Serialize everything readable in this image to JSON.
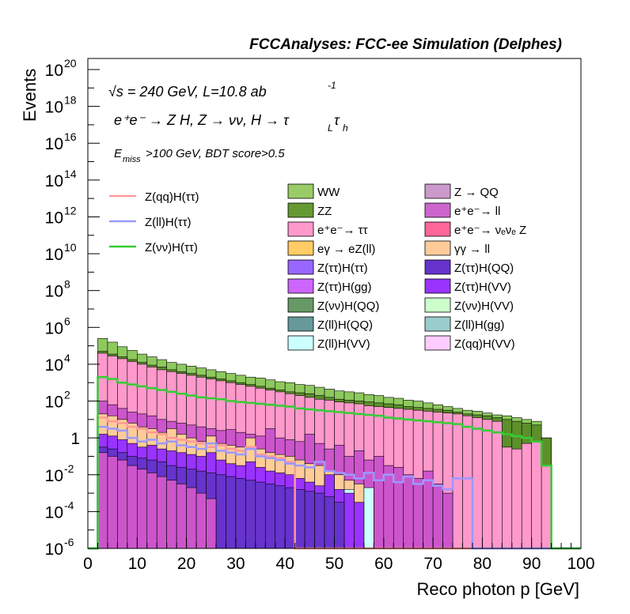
{
  "chart_data": {
    "type": "area",
    "title": "FCCAnalyses: FCC-ee Simulation (Delphes)",
    "xlabel": "Reco photon p [GeV]",
    "ylabel": "Events",
    "xlim": [
      0,
      100
    ],
    "ylim_exponent": [
      -6,
      20.6
    ],
    "log_y": true,
    "grid": false,
    "x_ticks": [
      "0",
      "10",
      "20",
      "30",
      "40",
      "50",
      "60",
      "70",
      "80",
      "90",
      "100"
    ],
    "y_ticks": [
      {
        "label": "10",
        "exp": "-6",
        "value": -6
      },
      {
        "label": "10",
        "exp": "-4",
        "value": -4
      },
      {
        "label": "10",
        "exp": "-2",
        "value": -2
      },
      {
        "label": "1",
        "exp": "",
        "value": 0
      },
      {
        "label": "10",
        "exp": "2",
        "value": 2
      },
      {
        "label": "10",
        "exp": "4",
        "value": 4
      },
      {
        "label": "10",
        "exp": "6",
        "value": 6
      },
      {
        "label": "10",
        "exp": "8",
        "value": 8
      },
      {
        "label": "10",
        "exp": "10",
        "value": 10
      },
      {
        "label": "10",
        "exp": "12",
        "value": 12
      },
      {
        "label": "10",
        "exp": "14",
        "value": 14
      },
      {
        "label": "10",
        "exp": "16",
        "value": 16
      },
      {
        "label": "10",
        "exp": "18",
        "value": 18
      },
      {
        "label": "10",
        "exp": "20",
        "value": 20
      }
    ],
    "annotations": {
      "energy": "√s = 240 GeV, L=10.8 ab",
      "energy_exp": "-1",
      "process": "e⁺e⁻ → Z H, Z → νν, H → τ",
      "process_sub1": "L",
      "process_tau": "τ",
      "process_sub2": "h",
      "cut_pre": "E",
      "cut_sub": "miss",
      "cut_post": ">100 GeV, BDT score>0.5"
    },
    "legend_position": "top-right",
    "bin_width_gev": 2,
    "stacked_series_note": "log10 of stack tops per 2 GeV bin, bins 0-2 .. 98-100",
    "stack_tops": [
      {
        "name": "WW",
        "color": "#8ec95e",
        "values": [
          -6,
          5.4,
          5.2,
          4.95,
          4.75,
          4.55,
          4.4,
          4.25,
          4.1,
          4.0,
          3.9,
          3.8,
          3.7,
          3.6,
          3.5,
          3.4,
          3.3,
          3.25,
          3.15,
          3.05,
          3.0,
          2.9,
          2.85,
          2.75,
          2.65,
          2.55,
          2.5,
          2.45,
          2.35,
          2.3,
          2.2,
          2.15,
          2.05,
          2.0,
          1.9,
          1.8,
          1.7,
          1.6,
          1.5,
          1.45,
          1.35,
          1.25,
          1.2,
          1.1,
          1.0,
          0.9,
          0.0,
          -6,
          -6,
          -6
        ]
      },
      {
        "name": "ZZ",
        "color": "#5d8f2b",
        "values": [
          -6,
          4.7,
          4.55,
          4.4,
          4.25,
          4.1,
          3.95,
          3.85,
          3.7,
          3.6,
          3.5,
          3.4,
          3.3,
          3.2,
          3.1,
          3.0,
          2.9,
          2.8,
          2.7,
          2.6,
          2.5,
          2.45,
          2.4,
          2.3,
          2.2,
          2.1,
          2.05,
          2.0,
          1.95,
          1.9,
          1.85,
          1.8,
          1.7,
          1.65,
          1.6,
          1.55,
          1.5,
          1.4,
          1.3,
          1.25,
          1.2,
          1.1,
          1.0,
          0.9,
          0.8,
          0.7,
          0.0,
          -6,
          -6,
          -6
        ]
      },
      {
        "name": "e⁺e⁻→ ττ",
        "color": "#ff99cc",
        "values": [
          -6,
          4.6,
          4.45,
          4.3,
          4.15,
          4.0,
          3.85,
          3.7,
          3.6,
          3.5,
          3.4,
          3.3,
          3.2,
          3.1,
          3.0,
          2.9,
          2.8,
          2.7,
          2.6,
          2.5,
          2.4,
          2.3,
          2.2,
          2.1,
          2.05,
          1.95,
          1.9,
          1.85,
          1.75,
          1.7,
          1.65,
          1.6,
          1.55,
          1.5,
          1.45,
          1.4,
          1.35,
          1.3,
          1.2,
          1.1,
          1.0,
          0.9,
          -0.5,
          -0.6,
          -0.3,
          -0.2,
          -1.5,
          -6,
          -6,
          -6
        ]
      },
      {
        "name": "e⁺e⁻→ ll",
        "color": "#cc55cc",
        "values": [
          -6,
          2.0,
          1.8,
          1.6,
          1.4,
          1.3,
          1.2,
          1.0,
          0.9,
          0.8,
          0.7,
          0.6,
          0.5,
          0.4,
          0.45,
          0.3,
          0.2,
          0.1,
          0.5,
          0.0,
          -0.1,
          -0.2,
          0.2,
          -0.3,
          -0.6,
          -0.4,
          -1.0,
          -0.7,
          -1.2,
          -1.0,
          -1.5,
          -1.6,
          -2.0,
          -2.2,
          -1.8,
          -2.5,
          -3.0,
          -6,
          -6,
          -6,
          -6,
          -6,
          -6,
          -6,
          -6,
          -6,
          -6,
          -6,
          -6,
          -6
        ]
      },
      {
        "name": "γγ → ll",
        "color": "#ffcc99",
        "values": [
          -6,
          1.3,
          1.2,
          1.0,
          0.8,
          0.6,
          0.5,
          0.3,
          0.5,
          0.2,
          0.0,
          -0.2,
          0.1,
          -0.3,
          -0.4,
          -0.5,
          0.0,
          -0.6,
          -0.8,
          -0.9,
          -1.0,
          -1.2,
          -1.4,
          -1.5,
          -1.8,
          -2.0,
          -2.3,
          -2.5,
          -3.0,
          -6,
          -6,
          -6,
          -6,
          -6,
          -6,
          -6,
          -6,
          -6,
          -6,
          -6,
          -6,
          -6,
          -6,
          -6,
          -6,
          -6,
          -6,
          -6,
          -6,
          -6
        ]
      },
      {
        "name": "Z(ll)H(VV)",
        "color": "#ccffff",
        "values": [
          -6,
          -1.5,
          -1.5,
          -2.5,
          -2.0,
          -1.8,
          -2.0,
          -2.2,
          -2.5,
          -1.9,
          -2.3,
          -2.0,
          -2.5,
          -2.1,
          -2.4,
          -6,
          -2.2,
          -2.6,
          -6,
          -2.3,
          -6,
          -6,
          -2.5,
          -6,
          -2.6,
          -6,
          -2.8,
          -6,
          -2.7,
          -6,
          -6,
          -6,
          -6,
          -6,
          -6,
          -6,
          -6,
          -6,
          -6,
          -6,
          -6,
          -6,
          -6,
          -6,
          -6,
          -6,
          -6,
          -6,
          -6,
          -6
        ]
      }
    ],
    "lines": [
      {
        "name": "Z(qq)H(ττ)",
        "color": "#ff9999",
        "values": [
          -6,
          1.1,
          0.9,
          0.8,
          0.6,
          0.5,
          0.3,
          0.2,
          0.0,
          -0.1,
          -0.2,
          -0.3,
          -0.5,
          -0.4,
          -0.6,
          -0.7,
          -0.5,
          -0.9,
          -1.0,
          -1.1,
          -1.3,
          -6,
          -6,
          -6,
          -6,
          -6,
          -6,
          -6,
          -6,
          -6,
          -6,
          -6,
          -6,
          -6,
          -6,
          -6,
          -6,
          -6,
          -6,
          -6,
          -6,
          -6,
          -6,
          -6,
          -6,
          -6,
          -6,
          -6,
          -6,
          -6
        ]
      },
      {
        "name": "Z(ll)H(ττ)",
        "color": "#9999ff",
        "values": [
          -6,
          0.6,
          0.5,
          0.4,
          0.0,
          -0.2,
          -0.1,
          -0.3,
          -0.2,
          -0.4,
          -0.5,
          -0.6,
          -0.3,
          -0.7,
          -0.8,
          -0.9,
          -0.6,
          -1.0,
          -1.1,
          -1.2,
          -1.4,
          -1.5,
          -1.6,
          -1.3,
          -1.8,
          -1.9,
          -2.0,
          -2.2,
          -1.9,
          -2.3,
          -2.0,
          -2.4,
          -2.1,
          -2.5,
          -2.3,
          -2.6,
          -2.8,
          -2.2,
          -2.2,
          -6,
          -6,
          -6,
          -6,
          -6,
          -6,
          -6,
          -6,
          -6,
          -6,
          -6
        ]
      },
      {
        "name": "Z(νν)H(ττ)",
        "color": "#33cc33",
        "values": [
          -6,
          3.3,
          3.2,
          3.0,
          2.9,
          2.8,
          2.7,
          2.6,
          2.5,
          2.4,
          2.3,
          2.2,
          2.15,
          2.1,
          2.0,
          1.95,
          1.9,
          1.85,
          1.8,
          1.75,
          1.7,
          1.6,
          1.55,
          1.5,
          1.45,
          1.4,
          1.35,
          1.3,
          1.25,
          1.2,
          1.1,
          1.05,
          1.0,
          0.95,
          0.9,
          0.85,
          0.8,
          0.75,
          0.6,
          0.5,
          0.4,
          0.3,
          0.2,
          0.1,
          0.0,
          -0.2,
          -1.5,
          -6,
          -6,
          -6
        ]
      }
    ],
    "legend_lines": [
      "Z(qq)H(ττ)",
      "Z(ll)H(ττ)",
      "Z(νν)H(ττ)"
    ],
    "legend_stack": [
      {
        "label": "WW",
        "color": "#99cc66"
      },
      {
        "label": "Z → QQ",
        "color": "#cc99cc"
      },
      {
        "label": "ZZ",
        "color": "#669933"
      },
      {
        "label": "e⁺e⁻→ ll",
        "color": "#cc66cc"
      },
      {
        "label": "e⁺e⁻→ ττ",
        "color": "#ff99cc"
      },
      {
        "label": "e⁺e⁻→ νₑνₑ Z",
        "color": "#ff6699"
      },
      {
        "label": "eγ → eZ(ll)",
        "color": "#ffcc66"
      },
      {
        "label": "γγ → ll",
        "color": "#ffcc99"
      },
      {
        "label": "Z(ττ)H(ττ)",
        "color": "#9966ff"
      },
      {
        "label": "Z(ττ)H(QQ)",
        "color": "#6633cc"
      },
      {
        "label": "Z(ττ)H(gg)",
        "color": "#cc66ff"
      },
      {
        "label": "Z(ττ)H(VV)",
        "color": "#9933ff"
      },
      {
        "label": "Z(νν)H(QQ)",
        "color": "#669966"
      },
      {
        "label": "Z(νν)H(VV)",
        "color": "#ccffcc"
      },
      {
        "label": "Z(ll)H(QQ)",
        "color": "#669999"
      },
      {
        "label": "Z(ll)H(gg)",
        "color": "#99cccc"
      },
      {
        "label": "Z(ll)H(VV)",
        "color": "#ccffff"
      },
      {
        "label": "Z(qq)H(VV)",
        "color": "#ffccff"
      }
    ],
    "extra_fills": [
      {
        "color": "#9933ff",
        "values": [
          -6,
          0.2,
          0.1,
          -0.1,
          -0.3,
          -0.5,
          -0.4,
          -0.6,
          -0.7,
          -0.8,
          -0.9,
          -1.0,
          -0.8,
          -1.2,
          -1.4,
          -1.5,
          -1.3,
          -1.6,
          -1.8,
          -1.9,
          -2.0,
          -2.2,
          -2.4,
          -2.6,
          -2.0,
          -2.8,
          -3.0,
          -3.5,
          -6,
          -6,
          -6,
          -6,
          -6,
          -6,
          -6,
          -6,
          -6,
          -6,
          -6,
          -6,
          -6,
          -6,
          -6,
          -6,
          -6,
          -6,
          -6,
          -6,
          -6,
          -6
        ]
      },
      {
        "color": "#6633cc",
        "values": [
          -6,
          -0.5,
          -0.6,
          -0.8,
          -1.0,
          -1.1,
          -1.2,
          -1.3,
          -1.5,
          -1.6,
          -1.7,
          -1.8,
          -1.9,
          -2.0,
          -2.1,
          -2.2,
          -2.3,
          -2.4,
          -2.5,
          -2.6,
          -2.7,
          -2.8,
          -2.9,
          -3.0,
          -3.2,
          -3.5,
          -6,
          -6,
          -6,
          -6,
          -6,
          -6,
          -6,
          -6,
          -6,
          -6,
          -6,
          -6,
          -6,
          -6,
          -6,
          -6,
          -6,
          -6,
          -6,
          -6,
          -6,
          -6,
          -6,
          -6
        ]
      },
      {
        "color": "#cc55cc",
        "values": [
          -6,
          -0.8,
          -1.0,
          -1.2,
          -1.5,
          -1.7,
          -1.9,
          -2.1,
          -2.3,
          -2.5,
          -2.7,
          -3.0,
          -3.3,
          -6,
          -6,
          -6,
          -6,
          -6,
          -6,
          -6,
          -6,
          -6,
          -6,
          -6,
          -6,
          -6,
          -6,
          -6,
          -6,
          -6,
          -6,
          -6,
          -6,
          -6,
          -6,
          -6,
          -6,
          -6,
          -6,
          -6,
          -6,
          -6,
          -6,
          -6,
          -6,
          -6,
          -6,
          -6,
          -6,
          -6
        ]
      }
    ]
  }
}
